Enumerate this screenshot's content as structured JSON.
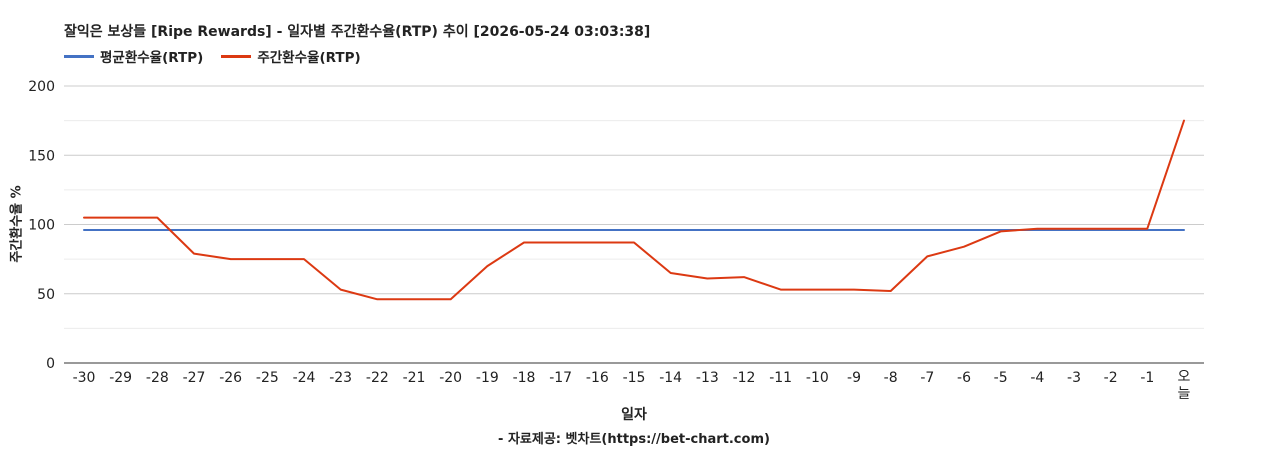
{
  "chart_data": {
    "type": "line",
    "title": "잘익은 보상들 [Ripe Rewards] - 일자별 주간환수율(RTP) 추이 [2026-05-24 03:03:38]",
    "xlabel": "일자",
    "ylabel": "주간환수율 %",
    "source": "- 자료제공: 벳차트(https://bet-chart.com)",
    "ylim": [
      0,
      200
    ],
    "yticks": [
      0,
      50,
      100,
      150,
      200
    ],
    "grid": true,
    "legend_position": "top-left",
    "categories": [
      "-30",
      "-29",
      "-28",
      "-27",
      "-26",
      "-25",
      "-24",
      "-23",
      "-22",
      "-21",
      "-20",
      "-19",
      "-18",
      "-17",
      "-16",
      "-15",
      "-14",
      "-13",
      "-12",
      "-11",
      "-10",
      "-9",
      "-8",
      "-7",
      "-6",
      "-5",
      "-4",
      "-3",
      "-2",
      "-1",
      "오늘"
    ],
    "series": [
      {
        "name": "평균환수율(RTP)",
        "color": "#4472c4",
        "values": [
          96,
          96,
          96,
          96,
          96,
          96,
          96,
          96,
          96,
          96,
          96,
          96,
          96,
          96,
          96,
          96,
          96,
          96,
          96,
          96,
          96,
          96,
          96,
          96,
          96,
          96,
          96,
          96,
          96,
          96,
          96
        ]
      },
      {
        "name": "주간환수율(RTP)",
        "color": "#dc3912",
        "values": [
          105,
          105,
          105,
          79,
          75,
          75,
          75,
          53,
          46,
          46,
          46,
          70,
          87,
          87,
          87,
          87,
          65,
          61,
          62,
          53,
          53,
          53,
          52,
          77,
          84,
          95,
          97,
          97,
          97,
          97,
          175
        ]
      }
    ]
  }
}
